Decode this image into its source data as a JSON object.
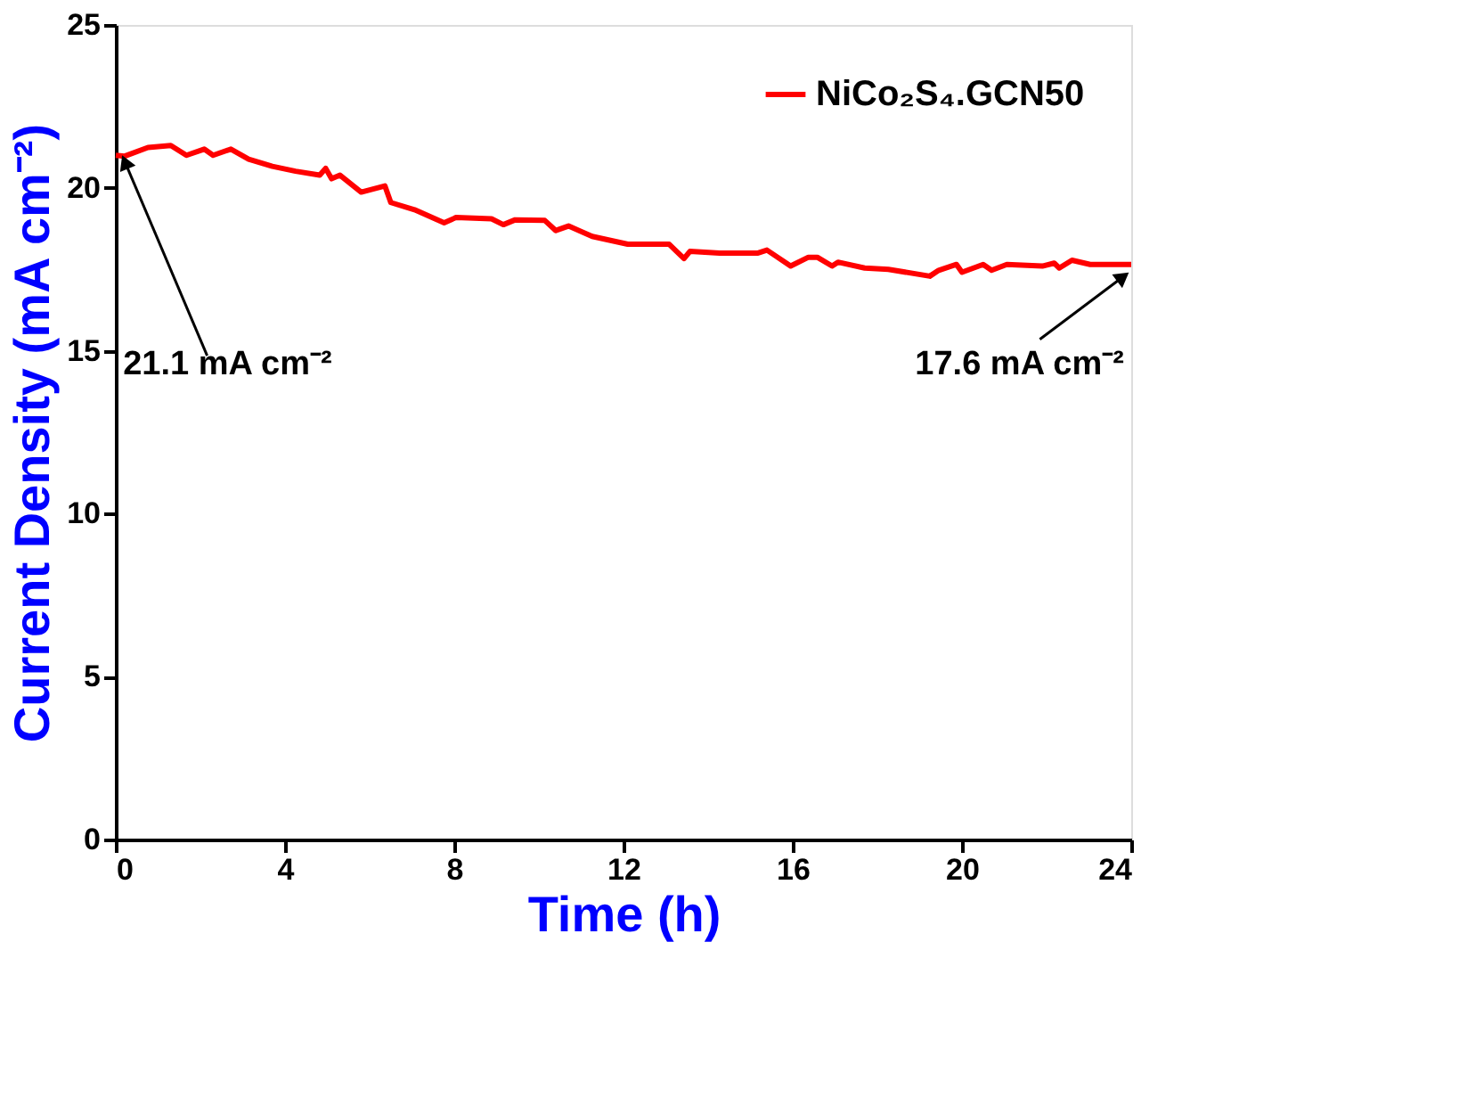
{
  "chart_data": {
    "type": "line",
    "xlabel": "Time (h)",
    "ylabel": "Current Density (mA cm⁻²)",
    "x": [
      0,
      0.2,
      0.76,
      1.3,
      1.67,
      2.09,
      2.3,
      2.72,
      3.14,
      3.7,
      4.25,
      4.82,
      4.96,
      5.1,
      5.3,
      5.8,
      6.36,
      6.5,
      7.06,
      7.76,
      8.04,
      8.88,
      9.16,
      9.44,
      10.14,
      10.4,
      10.7,
      11.26,
      12.1,
      13.08,
      13.43,
      13.57,
      14.27,
      15.18,
      15.39,
      15.95,
      16.37,
      16.58,
      16.93,
      17.07,
      17.7,
      18.26,
      19.24,
      19.45,
      19.87,
      20.0,
      20.5,
      20.7,
      21.06,
      21.9,
      22.18,
      22.3,
      22.6,
      23.03,
      23.66,
      24
    ],
    "series": [
      {
        "name": "NiCo₂S₄.GCN50",
        "color": "#ff0000",
        "values": [
          21.0,
          20.97,
          21.24,
          21.3,
          21.0,
          21.19,
          21.0,
          21.19,
          20.88,
          20.66,
          20.51,
          20.39,
          20.6,
          20.28,
          20.39,
          19.87,
          20.06,
          19.55,
          19.33,
          18.93,
          19.09,
          19.05,
          18.87,
          19.02,
          19.0,
          18.69,
          18.83,
          18.51,
          18.27,
          18.27,
          17.83,
          18.05,
          18.0,
          18.0,
          18.09,
          17.6,
          17.87,
          17.87,
          17.6,
          17.72,
          17.54,
          17.5,
          17.29,
          17.47,
          17.65,
          17.41,
          17.65,
          17.47,
          17.65,
          17.6,
          17.69,
          17.54,
          17.78,
          17.65,
          17.65,
          17.65
        ]
      }
    ],
    "xlim": [
      0,
      24
    ],
    "xticks": [
      0,
      4,
      8,
      12,
      16,
      20,
      24
    ],
    "ylim": [
      0,
      25
    ],
    "yticks": [
      0,
      5,
      10,
      15,
      20,
      25
    ],
    "annotations": [
      {
        "text": "21.1 mA cm⁻²",
        "x": 0,
        "y": 21.1
      },
      {
        "text": "17.6 mA cm⁻²",
        "x": 24,
        "y": 17.6
      }
    ],
    "legend": "top right",
    "grid": false,
    "marker": "none",
    "line_style": "solid"
  }
}
